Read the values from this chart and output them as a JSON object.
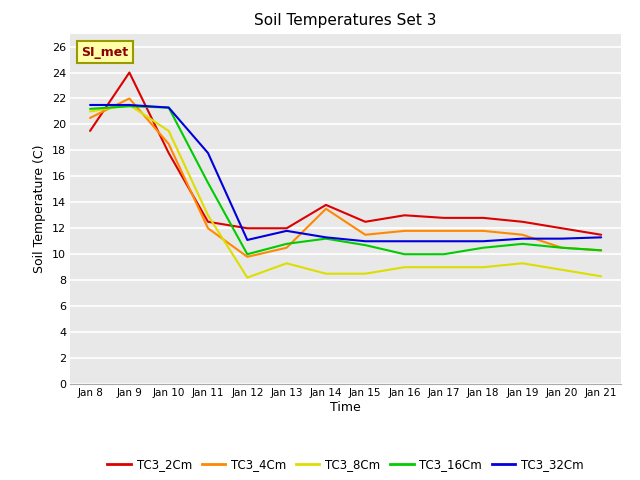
{
  "title": "Soil Temperatures Set 3",
  "xlabel": "Time",
  "ylabel": "Soil Temperature (C)",
  "ylim": [
    0,
    27
  ],
  "yticks": [
    0,
    2,
    4,
    6,
    8,
    10,
    12,
    14,
    16,
    18,
    20,
    22,
    24,
    26
  ],
  "x_labels": [
    "Jan 8",
    "Jan 9",
    "Jan 10",
    "Jan 11",
    "Jan 12",
    "Jan 13",
    "Jan 14",
    "Jan 15",
    "Jan 16",
    "Jan 17",
    "Jan 18",
    "Jan 19",
    "Jan 20",
    "Jan 21"
  ],
  "fig_bg": "#ffffff",
  "plot_bg": "#e8e8e8",
  "grid_color": "#ffffff",
  "series": {
    "TC3_2Cm": {
      "color": "#dd0000",
      "data": [
        19.5,
        24.0,
        17.8,
        12.5,
        12.0,
        12.0,
        13.8,
        12.5,
        13.0,
        12.8,
        12.8,
        12.5,
        12.0,
        11.5
      ]
    },
    "TC3_4Cm": {
      "color": "#ff8800",
      "data": [
        20.5,
        22.0,
        18.5,
        12.0,
        9.8,
        10.5,
        13.5,
        11.5,
        11.8,
        11.8,
        11.8,
        11.5,
        10.5,
        10.3
      ]
    },
    "TC3_8Cm": {
      "color": "#dddd00",
      "data": [
        21.0,
        21.5,
        19.5,
        13.0,
        8.2,
        9.3,
        8.5,
        8.5,
        9.0,
        9.0,
        9.0,
        9.3,
        8.8,
        8.3
      ]
    },
    "TC3_16Cm": {
      "color": "#00cc00",
      "data": [
        21.2,
        21.4,
        21.3,
        15.5,
        10.0,
        10.8,
        11.2,
        10.7,
        10.0,
        10.0,
        10.5,
        10.8,
        10.5,
        10.3
      ]
    },
    "TC3_32Cm": {
      "color": "#0000dd",
      "data": [
        21.5,
        21.5,
        21.3,
        17.8,
        11.1,
        11.8,
        11.3,
        11.0,
        11.0,
        11.0,
        11.0,
        11.2,
        11.2,
        11.3
      ]
    }
  },
  "legend_order": [
    "TC3_2Cm",
    "TC3_4Cm",
    "TC3_8Cm",
    "TC3_16Cm",
    "TC3_32Cm"
  ],
  "annotation_text": "SI_met",
  "ann_color": "#8b0000",
  "ann_bg": "#ffffaa",
  "ann_edge": "#999900"
}
